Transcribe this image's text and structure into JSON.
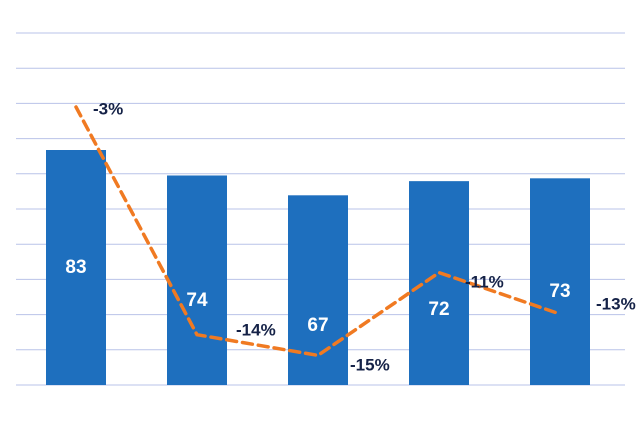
{
  "chart_data": {
    "type": "bar",
    "categories": [
      "",
      "",
      "",
      "",
      ""
    ],
    "series": [
      {
        "values": [
          83,
          74,
          67,
          72,
          73
        ],
        "chart_type": "bar"
      },
      {
        "values": [
          -3,
          -14,
          -15,
          -11,
          -13
        ],
        "value_labels": [
          "-3%",
          "-14%",
          "-15%",
          "-11%",
          "-13%"
        ],
        "chart_type": "line",
        "style": "dashed"
      }
    ],
    "title": "",
    "xlabel": "",
    "ylabel": "",
    "grid": true,
    "legend": "none",
    "colors": {
      "bar": "#1e6fbe",
      "line": "#f07a22",
      "grid": "#b9c3e8",
      "label": "#152247"
    }
  }
}
